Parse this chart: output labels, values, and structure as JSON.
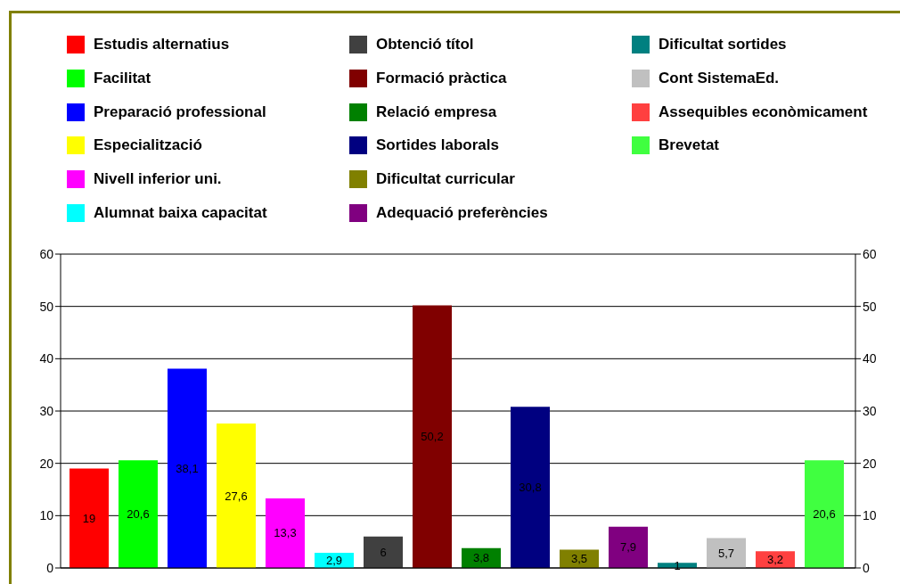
{
  "chart_data": {
    "type": "bar",
    "categories": [
      null
    ],
    "series": [
      {
        "name": "Estudis alternatius",
        "color": "#ff0000",
        "values": [
          19
        ],
        "value_labels": [
          "19"
        ]
      },
      {
        "name": "Facilitat",
        "color": "#00ff00",
        "values": [
          20.6
        ],
        "value_labels": [
          "20,6"
        ]
      },
      {
        "name": "Preparació professional",
        "color": "#0000ff",
        "values": [
          38.1
        ],
        "value_labels": [
          "38,1"
        ]
      },
      {
        "name": "Especialització",
        "color": "#ffff00",
        "values": [
          27.6
        ],
        "value_labels": [
          "27,6"
        ]
      },
      {
        "name": "Nivell inferior uni.",
        "color": "#ff00ff",
        "values": [
          13.3
        ],
        "value_labels": [
          "13,3"
        ]
      },
      {
        "name": "Alumnat baixa capacitat",
        "color": "#00ffff",
        "values": [
          2.9
        ],
        "value_labels": [
          "2,9"
        ]
      },
      {
        "name": "Obtenció títol",
        "color": "#404040",
        "values": [
          6
        ],
        "value_labels": [
          "6"
        ]
      },
      {
        "name": "Formació pràctica",
        "color": "#800000",
        "values": [
          50.2
        ],
        "value_labels": [
          "50,2"
        ]
      },
      {
        "name": "Relació empresa",
        "color": "#008000",
        "values": [
          3.8
        ],
        "value_labels": [
          "3,8"
        ]
      },
      {
        "name": "Sortides laborals",
        "color": "#000080",
        "values": [
          30.8
        ],
        "value_labels": [
          "30,8"
        ]
      },
      {
        "name": "Dificultat curricular",
        "color": "#808000",
        "values": [
          3.5
        ],
        "value_labels": [
          "3,5"
        ]
      },
      {
        "name": "Adequació preferències",
        "color": "#800080",
        "values": [
          7.9
        ],
        "value_labels": [
          "7,9"
        ]
      },
      {
        "name": "Dificultat sortides",
        "color": "#008080",
        "values": [
          1
        ],
        "value_labels": [
          "1"
        ]
      },
      {
        "name": "Cont SistemaEd.",
        "color": "#c0c0c0",
        "values": [
          5.7
        ],
        "value_labels": [
          "5,7"
        ]
      },
      {
        "name": "Assequibles econòmicament",
        "color": "#ff4040",
        "values": [
          3.2
        ],
        "value_labels": [
          "3,2"
        ]
      },
      {
        "name": "Brevetat",
        "color": "#40ff40",
        "values": [
          20.6
        ],
        "value_labels": [
          "20,6"
        ]
      }
    ],
    "ylim": [
      0,
      60
    ],
    "yticks": [
      0,
      10,
      20,
      30,
      40,
      50,
      60
    ],
    "y2lim": [
      0,
      60
    ],
    "y2ticks": [
      0,
      10,
      20,
      30,
      40,
      50,
      60
    ],
    "grid": "y",
    "legend": "top"
  }
}
